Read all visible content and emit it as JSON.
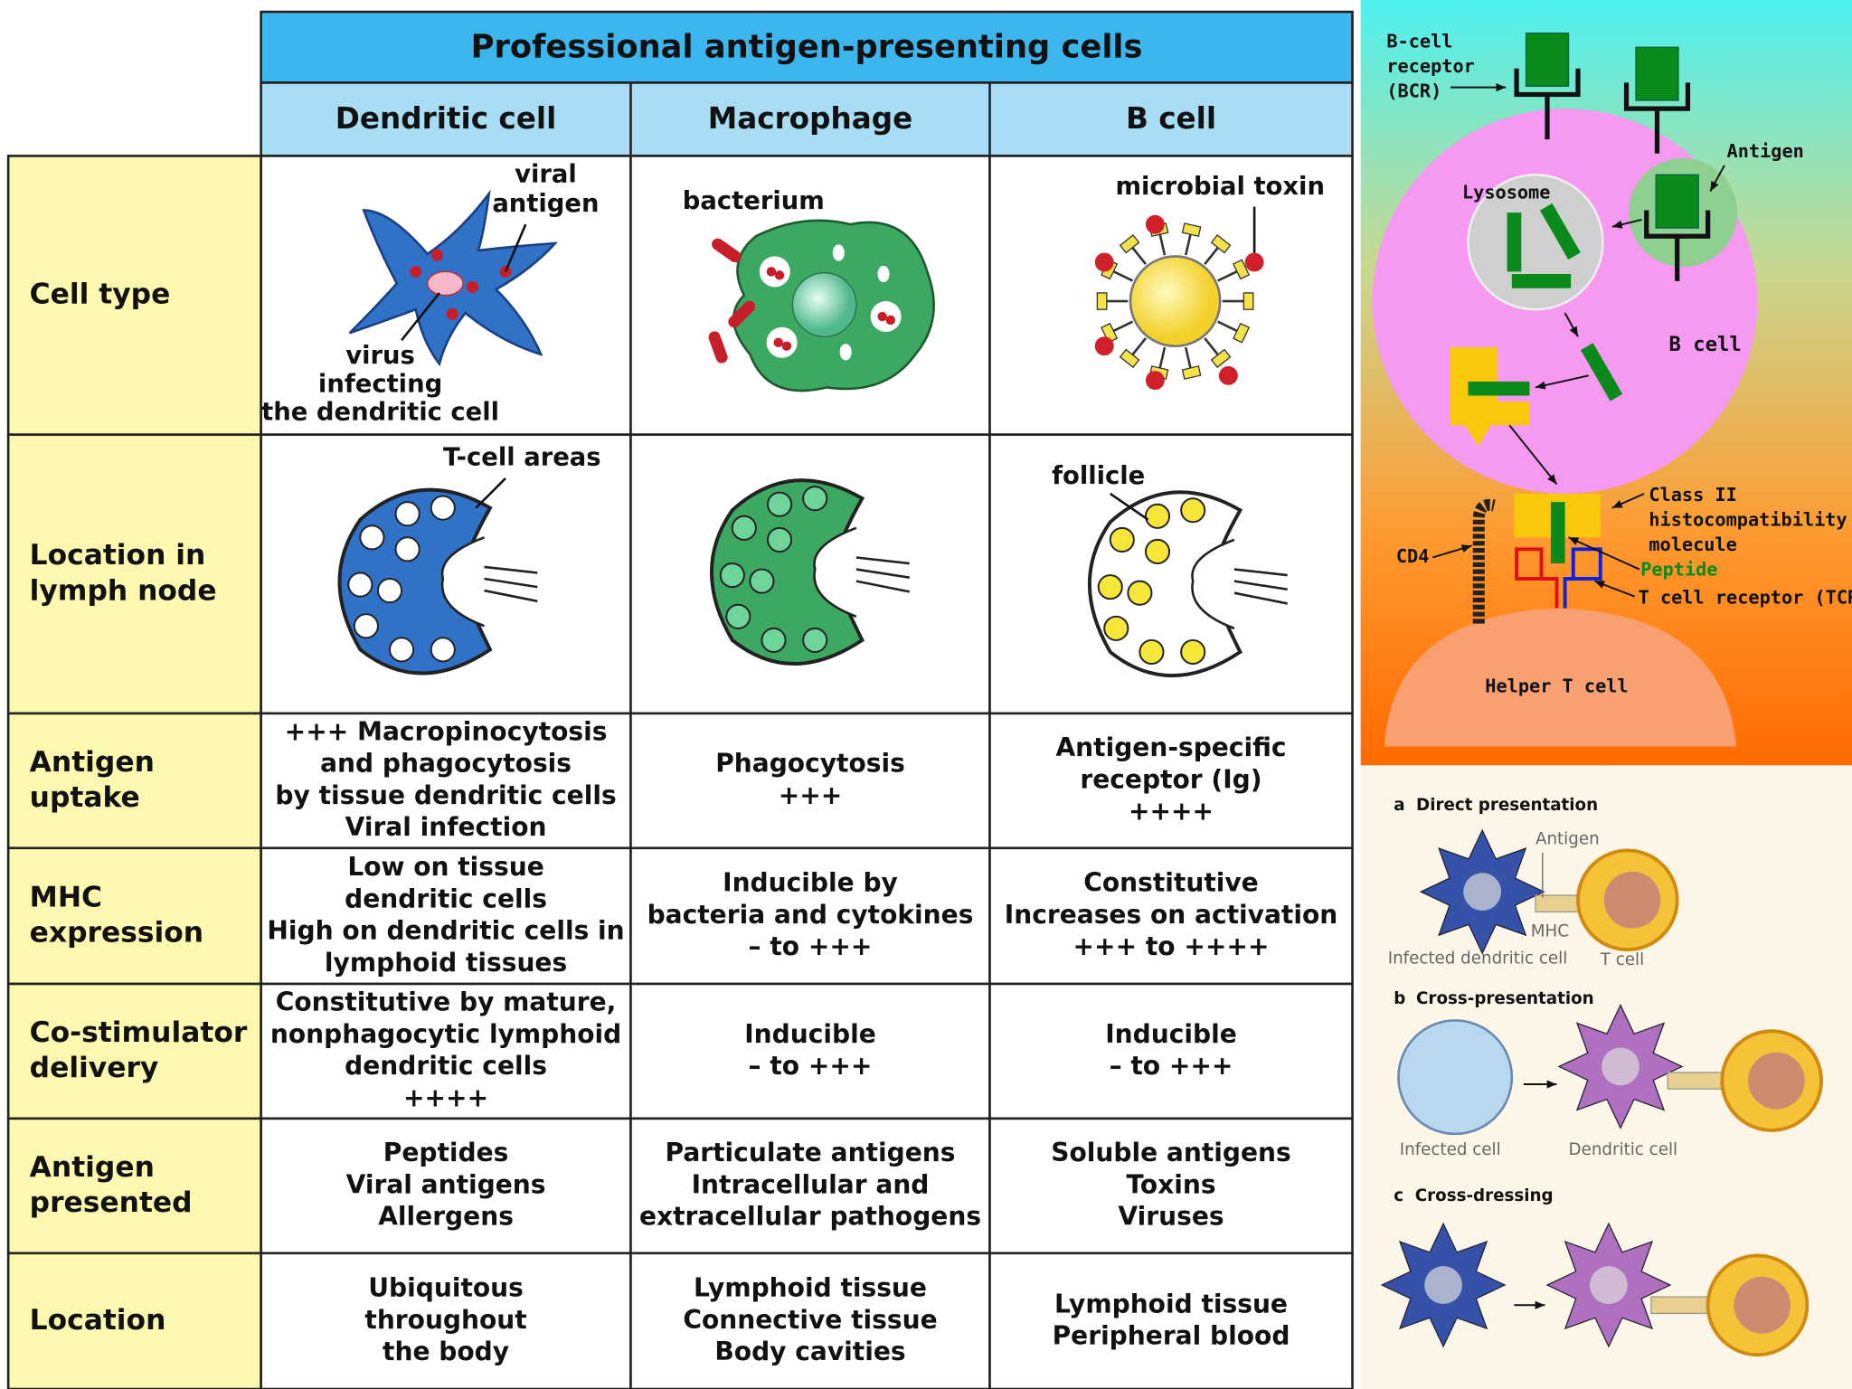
{
  "table": {
    "title": "Professional antigen-presenting cells",
    "columns": [
      "Dendritic cell",
      "Macrophage",
      "B cell"
    ],
    "row_labels": [
      [
        "Cell type"
      ],
      [
        "Location in",
        "lymph node"
      ],
      [
        "Antigen",
        "uptake"
      ],
      [
        "MHC",
        "expression"
      ],
      [
        "Co-stimulator",
        "delivery"
      ],
      [
        "Antigen",
        "presented"
      ],
      [
        "Location"
      ]
    ],
    "cell_type_labels": {
      "dendritic": {
        "antigen": [
          "viral",
          "antigen"
        ],
        "infection": [
          "virus",
          "infecting",
          "the dendritic cell"
        ]
      },
      "macrophage": "bacterium",
      "b_cell": "microbial toxin"
    },
    "lymph_node_labels": {
      "dendritic": "T-cell areas",
      "b_cell": "follicle"
    },
    "rows": [
      [
        [
          "+++ Macropinocytosis",
          "and phagocytosis",
          "by tissue dendritic cells",
          "Viral infection"
        ],
        [
          "Phagocytosis",
          "+++"
        ],
        [
          "Antigen-specific",
          "receptor (Ig)",
          "++++"
        ]
      ],
      [
        [
          "Low on tissue",
          "dendritic cells",
          "High on dendritic cells in",
          "lymphoid tissues"
        ],
        [
          "Inducible by",
          "bacteria and cytokines",
          "– to +++"
        ],
        [
          "Constitutive",
          "Increases on activation",
          "+++ to ++++"
        ]
      ],
      [
        [
          "Constitutive by mature,",
          "nonphagocytic lymphoid",
          "dendritic cells",
          "++++"
        ],
        [
          "Inducible",
          "– to +++"
        ],
        [
          "Inducible",
          "– to +++"
        ]
      ],
      [
        [
          "Peptides",
          "Viral antigens",
          "Allergens"
        ],
        [
          "Particulate antigens",
          "Intracellular and",
          "extracellular pathogens"
        ],
        [
          "Soluble antigens",
          "Toxins",
          "Viruses"
        ]
      ],
      [
        [
          "Ubiquitous",
          "throughout",
          "the body"
        ],
        [
          "Lymphoid tissue",
          "Connective tissue",
          "Body cavities"
        ],
        [
          "Lymphoid tissue",
          "Peripheral blood"
        ]
      ]
    ]
  },
  "bcr_diagram": {
    "bcr_label": [
      "B-cell",
      "receptor",
      "(BCR)"
    ],
    "antigen": "Antigen",
    "lysosome": "Lysosome",
    "b_cell": "B cell",
    "mhc": [
      "Class II",
      "histocompatibility",
      "molecule"
    ],
    "peptide": "Peptide",
    "tcr": "T cell receptor (TCR)",
    "cd4": "CD4",
    "helper": "Helper T cell"
  },
  "presentation": {
    "a": {
      "letter": "a",
      "title": "Direct presentation",
      "antigen": "Antigen",
      "mhc": "MHC",
      "cell1": "Infected dendritic cell",
      "cell2": "T cell"
    },
    "b": {
      "letter": "b",
      "title": "Cross-presentation",
      "cell1": "Infected cell",
      "cell2": "Dendritic cell"
    },
    "c": {
      "letter": "c",
      "title": "Cross-dressing"
    }
  }
}
